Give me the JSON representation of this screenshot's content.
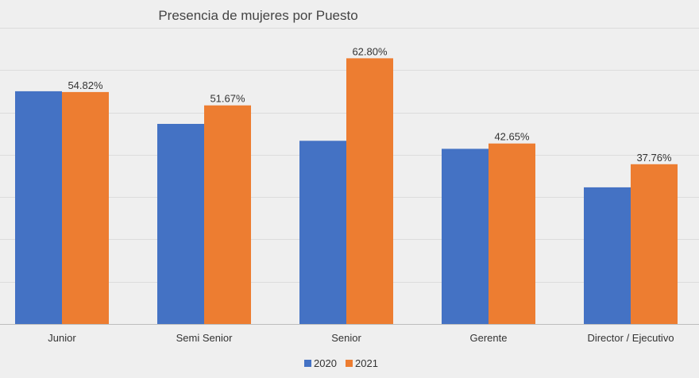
{
  "chart_data": {
    "type": "bar",
    "title": "Presencia de mujeres por Puesto",
    "categories": [
      "Junior",
      "Semi Senior",
      "Senior",
      "Gerente",
      "Director / Ejecutivo"
    ],
    "series": [
      {
        "name": "2020",
        "color": "#4472c4",
        "values": [
          55.0,
          47.3,
          43.3,
          41.4,
          32.3
        ],
        "labels": [
          "",
          "",
          "",
          "",
          ""
        ]
      },
      {
        "name": "2021",
        "color": "#ed7d31",
        "values": [
          54.82,
          51.67,
          62.8,
          42.65,
          37.76
        ],
        "labels": [
          "54.82%",
          "51.67%",
          "62.80%",
          "42.65%",
          "37.76%"
        ]
      }
    ],
    "ylim": [
      0,
      70
    ],
    "y_unit": "%",
    "grid": true,
    "y_tick_labels_visible": false,
    "legend_position": "bottom"
  }
}
